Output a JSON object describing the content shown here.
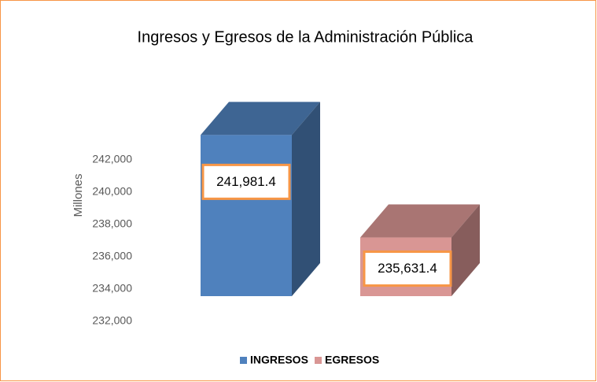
{
  "chart_data": {
    "type": "bar3d",
    "title": "Ingresos y Egresos de la Administración Pública",
    "y_axis_label": "Millones",
    "categories": [
      "INGRESOS",
      "EGRESOS"
    ],
    "values": [
      241981.4,
      235631.4
    ],
    "value_labels": [
      "241,981.4",
      "235,631.4"
    ],
    "colors": [
      "#4f81bd",
      "#d99694"
    ],
    "ylim": [
      232000,
      244000
    ],
    "yticks": [
      {
        "value": 232000,
        "label": "232,000"
      },
      {
        "value": 234000,
        "label": "234,000"
      },
      {
        "value": 236000,
        "label": "236,000"
      },
      {
        "value": 238000,
        "label": "238,000"
      },
      {
        "value": 240000,
        "label": "240,000"
      },
      {
        "value": 242000,
        "label": "242,000"
      }
    ],
    "legend": "bottom"
  }
}
